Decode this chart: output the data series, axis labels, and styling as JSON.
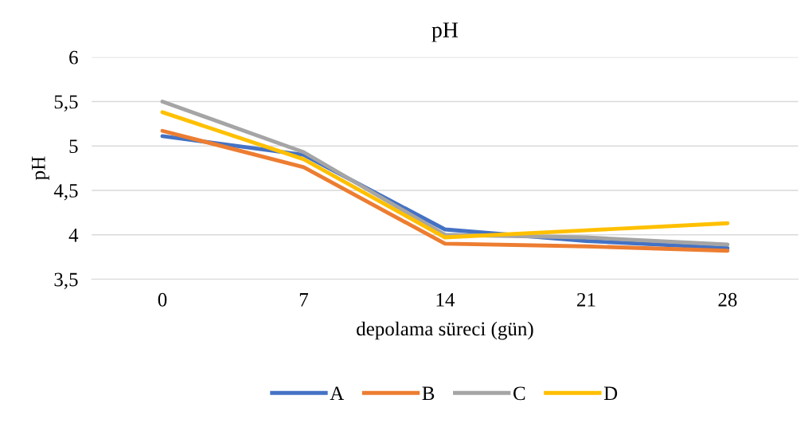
{
  "chart_data": {
    "type": "line",
    "title": "pH",
    "xlabel": "depolama süreci (gün)",
    "ylabel": "pH",
    "categories": [
      "0",
      "7",
      "14",
      "21",
      "28"
    ],
    "series": [
      {
        "name": "A",
        "color": "#4472c4",
        "values": [
          5.11,
          4.9,
          4.06,
          3.93,
          3.85
        ]
      },
      {
        "name": "B",
        "color": "#ed7d31",
        "values": [
          5.17,
          4.76,
          3.9,
          3.87,
          3.82
        ]
      },
      {
        "name": "C",
        "color": "#a5a5a5",
        "values": [
          5.5,
          4.93,
          4.0,
          3.97,
          3.89
        ]
      },
      {
        "name": "D",
        "color": "#ffc000",
        "values": [
          5.38,
          4.85,
          3.97,
          4.05,
          4.13
        ]
      }
    ],
    "ylim": [
      3.5,
      6
    ],
    "yticks": [
      {
        "value": 3.5,
        "label": "3,5"
      },
      4,
      {
        "value": 4.5,
        "label": "4,5"
      },
      5,
      {
        "value": 5.5,
        "label": "5,5"
      },
      6
    ],
    "grid": "y",
    "legend": "bottom",
    "marker": "none",
    "line_style": "solid"
  }
}
